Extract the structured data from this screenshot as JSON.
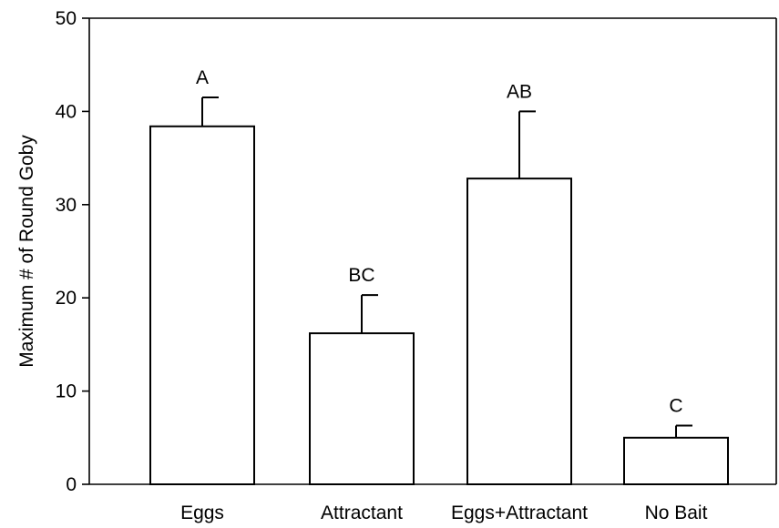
{
  "chart_data": {
    "type": "bar",
    "title": "",
    "xlabel": "",
    "ylabel": "Maximum # of Round Goby",
    "ylim": [
      0,
      50
    ],
    "yticks": [
      0,
      10,
      20,
      30,
      40,
      50
    ],
    "categories": [
      "Eggs",
      "Attractant",
      "Eggs+Attractant",
      "No Bait"
    ],
    "values": [
      38.4,
      16.2,
      32.8,
      5.0
    ],
    "error_upper": [
      3.1,
      4.1,
      7.2,
      1.3
    ],
    "significance_labels": [
      "A",
      "BC",
      "AB",
      "C"
    ],
    "grid": false,
    "legend": "none",
    "bar_fill": "#ffffff",
    "bar_edge": "#000000"
  }
}
